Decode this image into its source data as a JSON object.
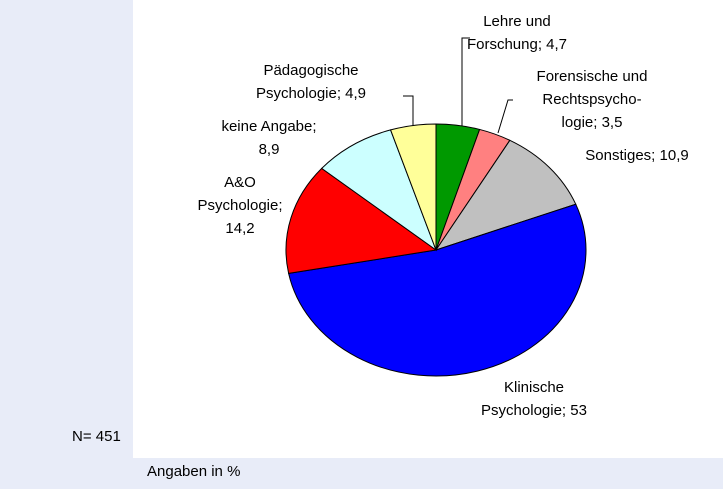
{
  "chart_data": {
    "type": "pie",
    "categories": [
      "Lehre und Forschung",
      "Forensische und Rechtspsychologie",
      "Sonstiges",
      "Klinische Psychologie",
      "A&O Psychologie",
      "keine Angabe",
      "Pädagogische Psychologie"
    ],
    "values": [
      4.7,
      3.5,
      10.9,
      53,
      14.2,
      8.9,
      4.9
    ],
    "value_labels": [
      [
        "Lehre und",
        "Forschung; 4,7"
      ],
      [
        "Forensische und",
        "Rechtspsycho-",
        "logie; 3,5"
      ],
      [
        "Sonstiges; 10,9"
      ],
      [
        "Klinische",
        "Psychologie; 53"
      ],
      [
        "A&O",
        "Psychologie;",
        "14,2"
      ],
      [
        "keine Angabe;",
        "8,9"
      ],
      [
        "Pädagogische",
        "Psychologie; 4,9"
      ]
    ],
    "colors": [
      "#009900",
      "#ff8080",
      "#c0c0c0",
      "#0000ff",
      "#ff0000",
      "#ccffff",
      "#ffff99"
    ],
    "note": "N= 451",
    "footnote": "Angaben in %"
  }
}
